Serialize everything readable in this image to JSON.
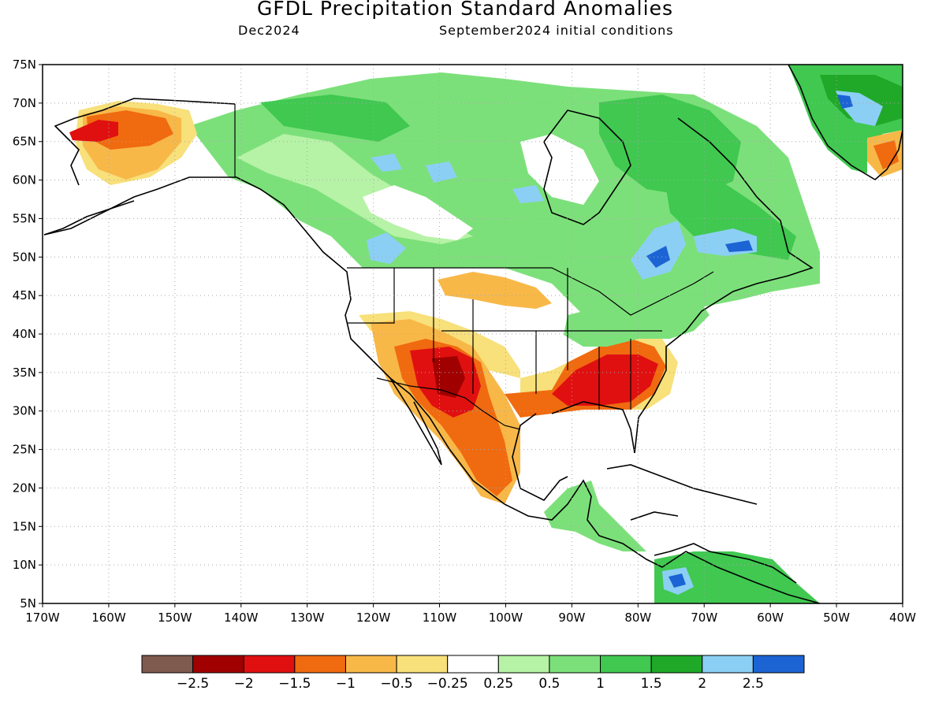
{
  "header": {
    "title": "GFDL Precipitation Standard Anomalies",
    "valid_month": "Dec2024",
    "init": "September2024 initial conditions"
  },
  "map": {
    "lat_labels": [
      "75N",
      "70N",
      "65N",
      "60N",
      "55N",
      "50N",
      "45N",
      "40N",
      "35N",
      "30N",
      "25N",
      "20N",
      "15N",
      "10N",
      "5N"
    ],
    "lon_labels": [
      "170W",
      "160W",
      "150W",
      "140W",
      "130W",
      "120W",
      "110W",
      "100W",
      "90W",
      "80W",
      "70W",
      "60W",
      "50W",
      "40W"
    ],
    "lat_range": [
      5,
      75
    ],
    "lon_range": [
      -170,
      -40
    ],
    "grid": "dotted"
  },
  "colorbar": {
    "colors": [
      "#7f5a4f",
      "#a00000",
      "#e01010",
      "#f06a10",
      "#f8b848",
      "#f8e07a",
      "#ffffff",
      "#b6f3a6",
      "#7ce07a",
      "#40c850",
      "#20a828",
      "#8ccff4",
      "#1c64d4"
    ],
    "labels": [
      "-2.5",
      "-2",
      "-1.5",
      "-1",
      "-0.5",
      "-0.25",
      "0.25",
      "0.5",
      "1",
      "1.5",
      "2",
      "2.5"
    ]
  },
  "regions": [
    {
      "name": "alaska-west",
      "anomaly": "-1.5 to -2"
    },
    {
      "name": "southwest-us",
      "anomaly": "-1.5 to -2.5"
    },
    {
      "name": "southeast-us",
      "anomaly": "-1.5 to -2"
    },
    {
      "name": "mexico-west",
      "anomaly": "-1 to -1.5"
    },
    {
      "name": "canada",
      "anomaly": "0.5 to 1.5"
    },
    {
      "name": "quebec",
      "anomaly": "2 to 2.5"
    },
    {
      "name": "greenland-north",
      "anomaly": "1.5 to 2.5"
    },
    {
      "name": "greenland-south",
      "anomaly": "-1 to -1.5"
    }
  ]
}
